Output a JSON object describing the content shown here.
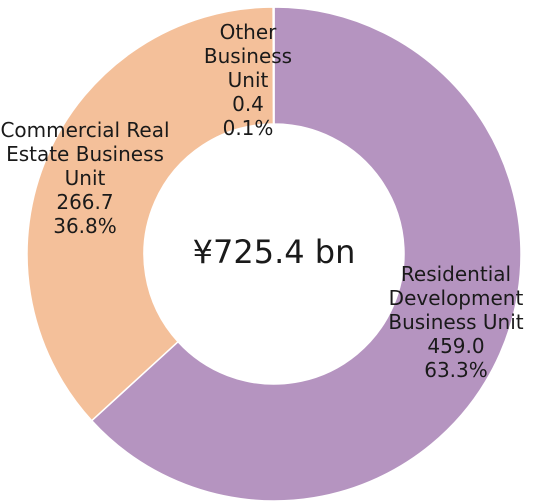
{
  "chart_data": {
    "type": "pie",
    "categories": [
      "Residential Development Business Unit",
      "Commercial Real Estate Business Unit",
      "Other Business Unit"
    ],
    "values": [
      459.0,
      266.7,
      0.4
    ],
    "value_labels": [
      "459.0",
      "266.7",
      "0.4"
    ],
    "percents": [
      63.3,
      36.8,
      0.1
    ],
    "percent_labels": [
      "63.3%",
      "36.8%",
      "0.1%"
    ],
    "colors": [
      "#b594c0",
      "#f4c09a",
      "#d9d9d9"
    ],
    "center_label": "¥725.4 bn"
  }
}
